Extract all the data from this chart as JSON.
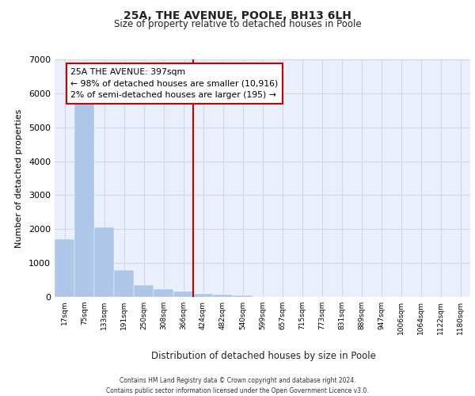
{
  "title": "25A, THE AVENUE, POOLE, BH13 6LH",
  "subtitle": "Size of property relative to detached houses in Poole",
  "xlabel": "Distribution of detached houses by size in Poole",
  "ylabel": "Number of detached properties",
  "bin_labels": [
    "17sqm",
    "75sqm",
    "133sqm",
    "191sqm",
    "250sqm",
    "308sqm",
    "366sqm",
    "424sqm",
    "482sqm",
    "540sqm",
    "599sqm",
    "657sqm",
    "715sqm",
    "773sqm",
    "831sqm",
    "889sqm",
    "947sqm",
    "1006sqm",
    "1064sqm",
    "1122sqm",
    "1180sqm"
  ],
  "bar_heights": [
    1700,
    5700,
    2050,
    800,
    350,
    230,
    170,
    100,
    70,
    50,
    10,
    0,
    0,
    0,
    0,
    0,
    0,
    0,
    0,
    0,
    0
  ],
  "bar_color": "#aec6e8",
  "bar_edge_color": "#aec6e8",
  "grid_color": "#d0d8e8",
  "background_color": "#eaf0fb",
  "property_line_x": 7.0,
  "property_line_color": "#cc0000",
  "annotation_text": "25A THE AVENUE: 397sqm\n← 98% of detached houses are smaller (10,916)\n2% of semi-detached houses are larger (195) →",
  "annotation_box_color": "#ffffff",
  "annotation_box_edge": "#cc0000",
  "ylim": [
    0,
    7000
  ],
  "yticks": [
    0,
    1000,
    2000,
    3000,
    4000,
    5000,
    6000,
    7000
  ],
  "footer_line1": "Contains HM Land Registry data © Crown copyright and database right 2024.",
  "footer_line2": "Contains public sector information licensed under the Open Government Licence v3.0."
}
